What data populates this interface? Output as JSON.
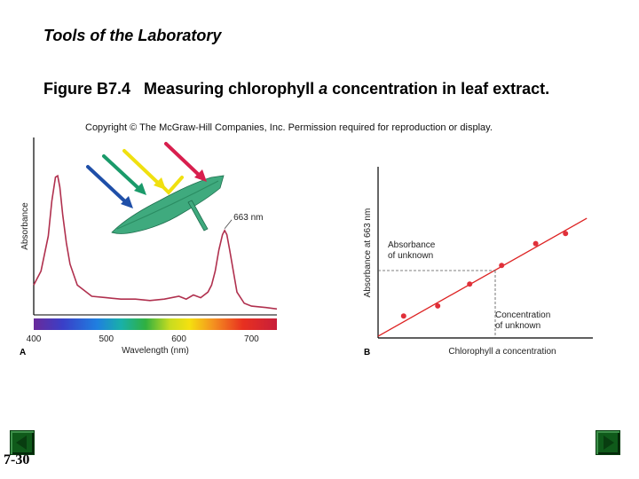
{
  "slide": {
    "title": "Tools of the Laboratory",
    "figure_label": "Figure B7.4",
    "figure_caption_pre": "Measuring chlorophyll ",
    "figure_caption_italic": "a",
    "figure_caption_post": " concentration in leaf extract.",
    "copyright": "Copyright © The McGraw-Hill Companies, Inc. Permission required for reproduction or display.",
    "page_number": "7-30"
  },
  "colors": {
    "curve": "#b0304e",
    "fit_line": "#d22",
    "points": "#e0303a",
    "leaf": "#3faa7e",
    "arrow_blue": "#1f4fa8",
    "arrow_green": "#1a9a6a",
    "arrow_yellow": "#f0e010",
    "arrow_red": "#d81f4e"
  },
  "chart_data": [
    {
      "type": "line",
      "panel_label": "A",
      "xlabel": "Wavelength (nm)",
      "ylabel": "Absorbance",
      "xlim": [
        400,
        735
      ],
      "ylim": [
        0,
        1
      ],
      "xticks": [
        {
          "value": 400,
          "label": "400"
        },
        {
          "value": 500,
          "label": "500"
        },
        {
          "value": 600,
          "label": "600"
        },
        {
          "value": 700,
          "label": "700"
        }
      ],
      "grid": false,
      "peak_annotation": {
        "text": "663 nm",
        "x": 663,
        "y": 0.59
      },
      "series": [
        {
          "x": [
            400,
            410,
            420,
            425,
            430,
            433,
            436,
            440,
            445,
            450,
            460,
            480,
            500,
            520,
            540,
            560,
            580,
            600,
            610,
            620,
            630,
            640,
            645,
            650,
            655,
            660,
            663,
            666,
            670,
            675,
            680,
            690,
            700,
            720,
            735
          ],
          "y": [
            0.2,
            0.3,
            0.55,
            0.8,
            0.97,
            0.98,
            0.9,
            0.7,
            0.5,
            0.35,
            0.2,
            0.12,
            0.11,
            0.1,
            0.1,
            0.09,
            0.1,
            0.12,
            0.1,
            0.13,
            0.11,
            0.15,
            0.2,
            0.3,
            0.45,
            0.56,
            0.59,
            0.56,
            0.45,
            0.3,
            0.15,
            0.07,
            0.05,
            0.04,
            0.03
          ]
        }
      ]
    },
    {
      "type": "scatter",
      "panel_label": "B",
      "xlabel_pre": "Chlorophyll ",
      "xlabel_italic": "a",
      "xlabel_post": " concentration",
      "ylabel": "Absorbance at 663 nm",
      "xlim": [
        0,
        10
      ],
      "ylim": [
        0,
        10
      ],
      "grid": false,
      "points": {
        "x": [
          1.2,
          2.8,
          4.3,
          5.8,
          7.4,
          8.8
        ],
        "y": [
          1.3,
          1.9,
          3.2,
          4.3,
          5.6,
          6.2
        ]
      },
      "fit_line": {
        "x": [
          0,
          9.8
        ],
        "y": [
          0.1,
          7.1
        ]
      },
      "unknown": {
        "x": 5.5,
        "y": 4.0
      },
      "annotations": {
        "absorbance_unknown": [
          "Absorbance",
          "of unknown"
        ],
        "concentration_unknown": [
          "Concentration",
          "of unknown"
        ]
      }
    }
  ]
}
